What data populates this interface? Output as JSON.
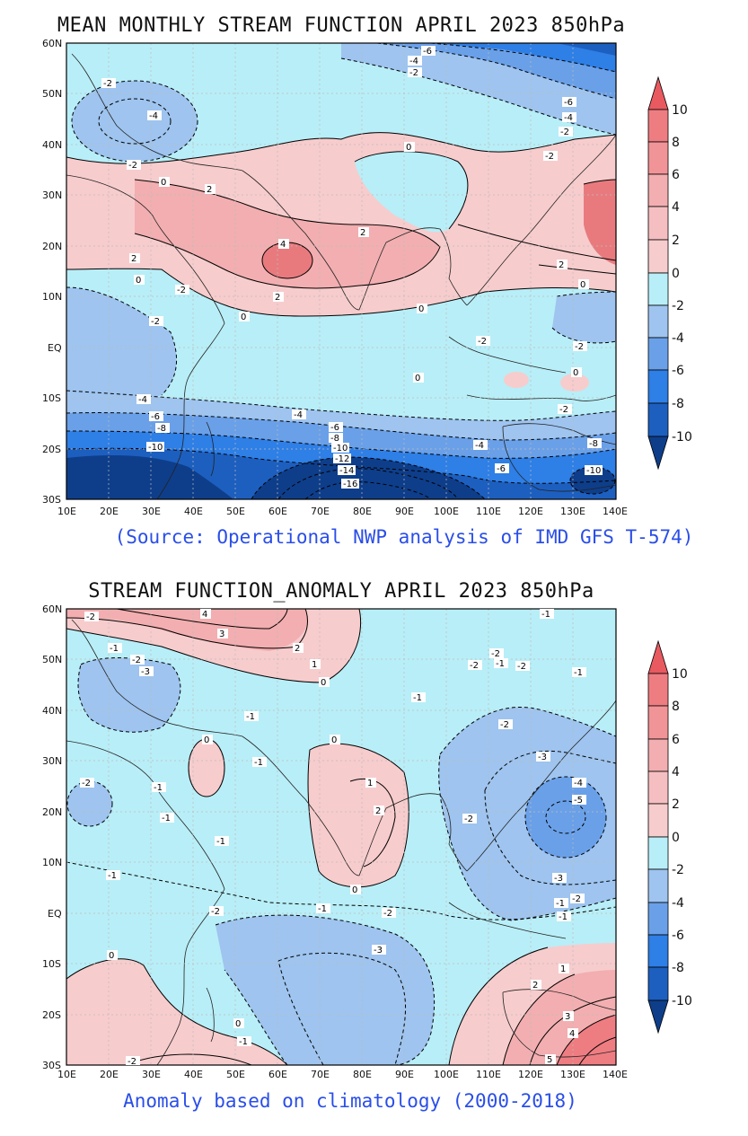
{
  "panels": [
    {
      "title": "MEAN MONTHLY STREAM FUNCTION APRIL 2023 850hPa",
      "note": "(Source: Operational NWP analysis of IMD GFS T-574)",
      "x_ticks": [
        "10E",
        "20E",
        "30E",
        "40E",
        "50E",
        "60E",
        "70E",
        "80E",
        "90E",
        "100E",
        "110E",
        "120E",
        "130E",
        "140E"
      ],
      "y_ticks": [
        "60N",
        "50N",
        "40N",
        "30N",
        "20N",
        "10N",
        "EQ",
        "10S",
        "20S",
        "30S"
      ],
      "colorbar": [
        "10",
        "8",
        "6",
        "4",
        "2",
        "0",
        "-2",
        "-4",
        "-6",
        "-8",
        "-10"
      ],
      "contour_labels": [
        "-6",
        "-4",
        "-2",
        "-2",
        "-4",
        "-2",
        "0",
        "-6",
        "-4",
        "-2",
        "0",
        "-2",
        "2",
        "2",
        "4",
        "2",
        "2",
        "0",
        "0",
        "0",
        "2",
        "0",
        "-2",
        "-2",
        "-2",
        "-2",
        "0",
        "0",
        "-4",
        "-6",
        "-8",
        "-10",
        "-4",
        "-6",
        "-8",
        "-10",
        "-12",
        "-14",
        "-16",
        "-4",
        "-6",
        "-2",
        "-8",
        "-10"
      ]
    },
    {
      "title": "STREAM FUNCTION_ANOMALY APRIL 2023 850hPa",
      "note": "Anomaly based on climatology (2000-2018)",
      "x_ticks": [
        "10E",
        "20E",
        "30E",
        "40E",
        "50E",
        "60E",
        "70E",
        "80E",
        "90E",
        "100E",
        "110E",
        "120E",
        "130E",
        "140E"
      ],
      "y_ticks": [
        "60N",
        "50N",
        "40N",
        "30N",
        "20N",
        "10N",
        "EQ",
        "10S",
        "20S",
        "30S"
      ],
      "colorbar": [
        "10",
        "8",
        "6",
        "4",
        "2",
        "0",
        "-2",
        "-4",
        "-6",
        "-8",
        "-10"
      ],
      "contour_labels": [
        "-2",
        "4",
        "3",
        "2",
        "1",
        "0",
        "-1",
        "-2",
        "-3",
        "-1",
        "-1",
        "-2",
        "-1",
        "-2",
        "-2",
        "-1",
        "-1",
        "0",
        "-1",
        "1",
        "2",
        "0",
        "-1",
        "-2",
        "-3",
        "-1",
        "0",
        "-2",
        "-3",
        "-4",
        "-5",
        "-3",
        "-2",
        "-1",
        "0",
        "-1",
        "1",
        "2",
        "3",
        "4",
        "5",
        "-1",
        "-2",
        "-2",
        "-1",
        "-1",
        "-2",
        "0",
        "-1",
        "-2"
      ]
    }
  ],
  "fill_colors": {
    "pos4_10": "#e87a7e",
    "pos2_4": "#f2aeb0",
    "pos0_2": "#f7cccd",
    "neg0_2": "#b8eef7",
    "neg2_4": "#9ec4ef",
    "neg4_6": "#6aa0e8",
    "neg6_8": "#2e7fe6",
    "neg8_10": "#1d5fbf",
    "neg10": "#0e3e8a"
  }
}
